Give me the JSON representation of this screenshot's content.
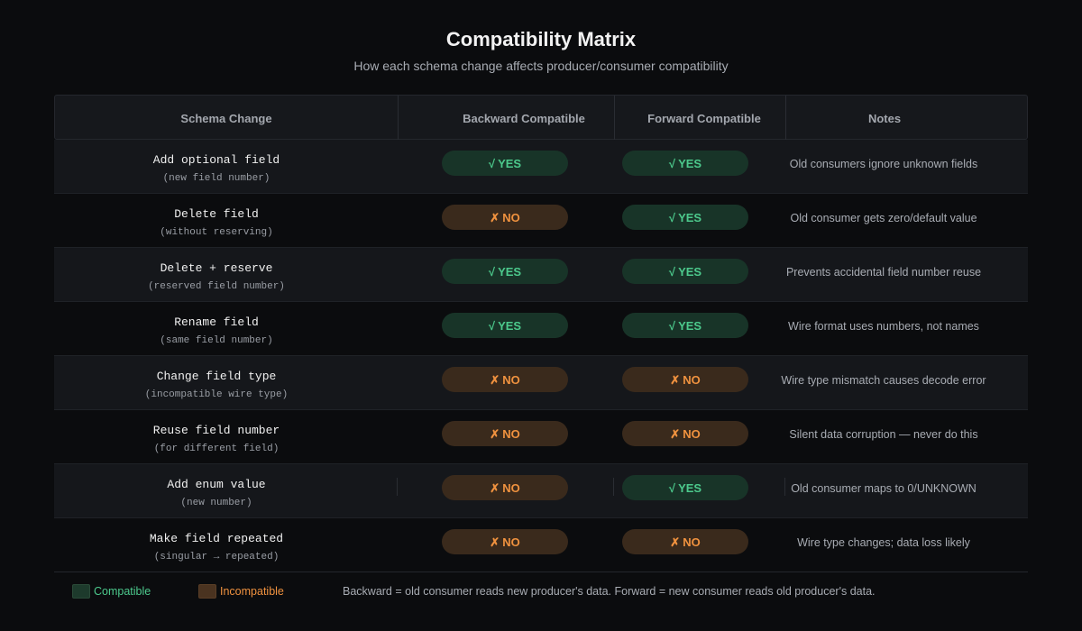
{
  "title": "Compatibility Matrix",
  "subtitle": "How each schema change affects producer/consumer compatibility",
  "columns": {
    "change": "Schema Change",
    "backward": "Backward Compatible",
    "forward": "Forward Compatible",
    "notes": "Notes"
  },
  "labels": {
    "yes": "YES",
    "no": "NO",
    "yes_symbol": "√",
    "no_symbol": "✗"
  },
  "rows": [
    {
      "change": "Add optional field",
      "detail": "(new field number)",
      "backward": "yes",
      "forward": "yes",
      "note": "Old consumers ignore unknown fields"
    },
    {
      "change": "Delete field",
      "detail": "(without reserving)",
      "backward": "no",
      "forward": "yes",
      "note": "Old consumer gets zero/default value"
    },
    {
      "change": "Delete + reserve",
      "detail": "(reserved field number)",
      "backward": "yes",
      "forward": "yes",
      "note": "Prevents accidental field number reuse"
    },
    {
      "change": "Rename field",
      "detail": "(same field number)",
      "backward": "yes",
      "forward": "yes",
      "note": "Wire format uses numbers, not names"
    },
    {
      "change": "Change field type",
      "detail": "(incompatible wire type)",
      "backward": "no",
      "forward": "no",
      "note": "Wire type mismatch causes decode error"
    },
    {
      "change": "Reuse field number",
      "detail": "(for different field)",
      "backward": "no",
      "forward": "no",
      "note": "Silent data corruption — never do this"
    },
    {
      "change": "Add enum value",
      "detail": "(new number)",
      "backward": "no",
      "forward": "yes",
      "note": "Old consumer maps to 0/UNKNOWN"
    },
    {
      "change": "Make field repeated",
      "detail": "(singular → repeated)",
      "backward": "no",
      "forward": "no",
      "note": "Wire type changes; data loss likely"
    }
  ],
  "legend": {
    "compatible": "Compatible",
    "incompatible": "Incompatible",
    "footnote": "Backward = old consumer reads new producer's data. Forward = new consumer reads old producer's data.",
    "compatible_color": "#4cc98c",
    "incompatible_color": "#f0923f"
  }
}
